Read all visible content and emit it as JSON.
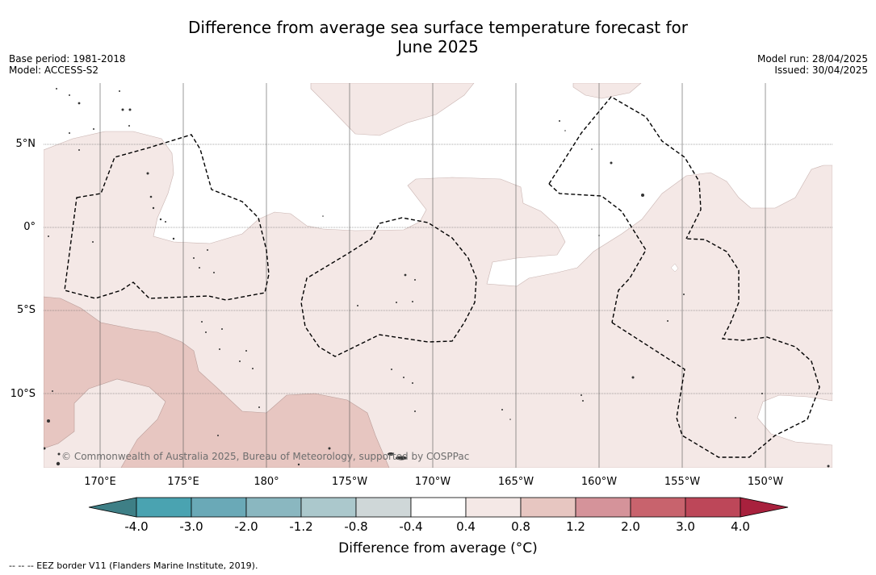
{
  "title": {
    "line1": "Difference from average sea surface temperature forecast for",
    "line2": "June 2025"
  },
  "meta": {
    "base_period": "Base period: 1981-2018",
    "model": "Model: ACCESS-S2",
    "model_run": "Model run: 28/04/2025",
    "issued": "Issued: 30/04/2025"
  },
  "map": {
    "lat_labels": [
      "5°N",
      "0°",
      "5°S",
      "10°S"
    ],
    "lon_labels": [
      "170°E",
      "175°E",
      "180°",
      "175°W",
      "170°W",
      "165°W",
      "160°W",
      "155°W",
      "150°W"
    ],
    "copyright": "© Commonwealth of Australia 2025, Bureau of Meteorology, supported by COSPPac",
    "colors": {
      "anomaly_0_4_0_8": "#f4e8e6",
      "anomaly_0_8_1_2": "#e7c6c1",
      "eez_line": "#000000",
      "gridline": "#555555",
      "land": "#333333"
    }
  },
  "colorbar": {
    "ticks": [
      "-4.0",
      "-3.0",
      "-2.0",
      "-1.2",
      "-0.8",
      "-0.4",
      "0.4",
      "0.8",
      "1.2",
      "2.0",
      "3.0",
      "4.0"
    ],
    "colors": [
      "#3e7f86",
      "#4aa3b1",
      "#6aa9b7",
      "#8ab7c0",
      "#abc8cc",
      "#cfd7d8",
      "#ffffff",
      "#f4e8e6",
      "#e7c6c1",
      "#d5939a",
      "#c8636d",
      "#bd4759",
      "#a8213d"
    ],
    "label": "Difference from average (°C)"
  },
  "footer": {
    "eez_legend": "--  --  -- EEZ border V11 (Flanders Marine Institute, 2019)."
  }
}
